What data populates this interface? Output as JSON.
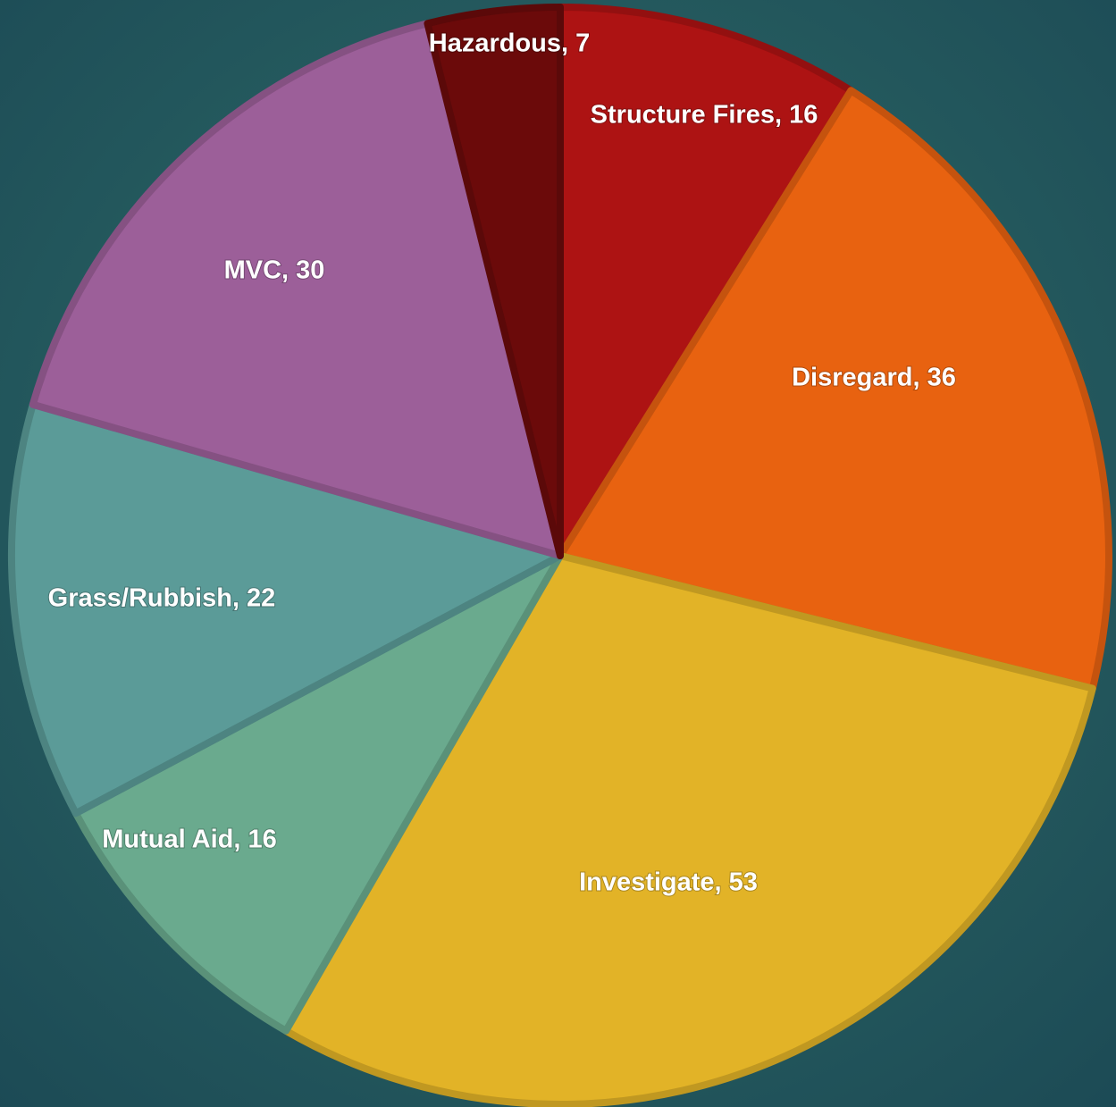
{
  "chart_data": {
    "type": "pie",
    "values": [
      16,
      36,
      53,
      16,
      22,
      30,
      7
    ],
    "value_labels": [
      "Structure Fires, 16",
      "Disregard, 36",
      "Investigate, 53",
      "Mutual Aid, 16",
      "Grass/Rubbish, 22",
      "MVC, 30",
      "Hazardous, 7"
    ],
    "colors": [
      "#ad1313",
      "#e86210",
      "#e2b327",
      "#6aaa8e",
      "#5b9b98",
      "#9c5f99",
      "#6b0a0a"
    ]
  }
}
